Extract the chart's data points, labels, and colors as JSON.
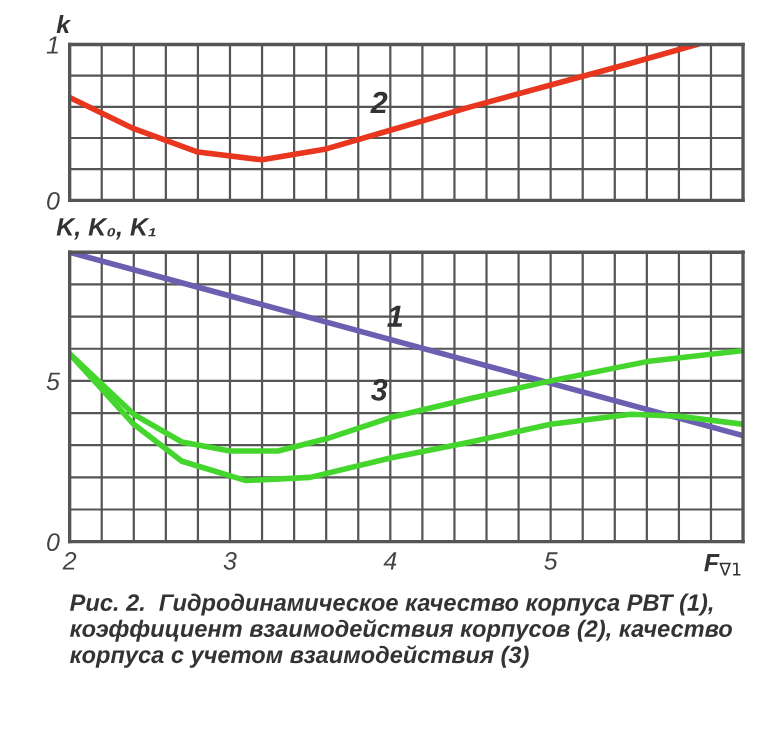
{
  "chart_data": [
    {
      "type": "line",
      "ylabel": "k",
      "tick_labels": "y",
      "grid": true,
      "xlim": [
        2,
        6.2
      ],
      "ylim": [
        0,
        1
      ],
      "xticks": [
        {
          "value": 2,
          "label": null
        },
        {
          "value": 2.2,
          "label": null
        },
        {
          "value": 2.4,
          "label": null
        },
        {
          "value": 2.6,
          "label": null
        },
        {
          "value": 2.8,
          "label": null
        },
        {
          "value": 3,
          "label": null
        },
        {
          "value": 3.2,
          "label": null
        },
        {
          "value": 3.4,
          "label": null
        },
        {
          "value": 3.6,
          "label": null
        },
        {
          "value": 3.8,
          "label": null
        },
        {
          "value": 4,
          "label": null
        },
        {
          "value": 4.2,
          "label": null
        },
        {
          "value": 4.4,
          "label": null
        },
        {
          "value": 4.6,
          "label": null
        },
        {
          "value": 4.8,
          "label": null
        },
        {
          "value": 5,
          "label": null
        },
        {
          "value": 5.2,
          "label": null
        },
        {
          "value": 5.4,
          "label": null
        },
        {
          "value": 5.6,
          "label": null
        },
        {
          "value": 5.8,
          "label": null
        },
        {
          "value": 6,
          "label": null
        }
      ],
      "yticks": [
        0,
        {
          "value": 0.2,
          "label": null
        },
        {
          "value": 0.4,
          "label": null
        },
        {
          "value": 0.6,
          "label": null
        },
        {
          "value": 0.8,
          "label": null
        },
        1
      ],
      "series": [
        {
          "name": "2",
          "color": "#e8361f",
          "x": [
            2.0,
            2.4,
            2.8,
            3.2,
            3.6,
            4.0,
            4.5,
            5.0,
            5.5,
            5.91
          ],
          "values": [
            0.66,
            0.46,
            0.31,
            0.26,
            0.33,
            0.45,
            0.6,
            0.74,
            0.88,
            1.0
          ]
        }
      ]
    },
    {
      "type": "line",
      "ylabel": "K, K₀, K₁",
      "xlabel": "F$_{∇1}$",
      "grid": true,
      "xlim": [
        2,
        6.2
      ],
      "ylim": [
        0,
        9
      ],
      "xticks": [
        2,
        {
          "value": 2.2,
          "label": null
        },
        {
          "value": 2.4,
          "label": null
        },
        {
          "value": 2.6,
          "label": null
        },
        {
          "value": 2.8,
          "label": null
        },
        3,
        {
          "value": 3.2,
          "label": null
        },
        {
          "value": 3.4,
          "label": null
        },
        {
          "value": 3.6,
          "label": null
        },
        {
          "value": 3.8,
          "label": null
        },
        4,
        {
          "value": 4.2,
          "label": null
        },
        {
          "value": 4.4,
          "label": null
        },
        {
          "value": 4.6,
          "label": null
        },
        {
          "value": 4.8,
          "label": null
        },
        5,
        {
          "value": 5.2,
          "label": null
        },
        {
          "value": 5.4,
          "label": null
        },
        {
          "value": 5.6,
          "label": null
        },
        {
          "value": 5.8,
          "label": null
        },
        {
          "value": 6,
          "label": null
        }
      ],
      "yticks": [
        0,
        {
          "value": 1,
          "label": null
        },
        {
          "value": 2,
          "label": null
        },
        {
          "value": 3,
          "label": null
        },
        {
          "value": 4,
          "label": null
        },
        5,
        {
          "value": 6,
          "label": null
        },
        {
          "value": 7,
          "label": null
        },
        {
          "value": 8,
          "label": null
        }
      ],
      "annotations": [
        "Рис. 2.  Гидродинамическое качество корпуса РВТ (1), коэффициент взаимодействия корпусов (2), качество корпуса с учетом взаимодействия (3)"
      ],
      "series": [
        {
          "name": "1",
          "color": "#6a5fb0",
          "x": [
            2.0,
            6.2
          ],
          "values": [
            9.0,
            3.3
          ]
        },
        {
          "name": "3",
          "color": "#44d62c",
          "x": [
            2.0,
            2.4,
            2.7,
            3.0,
            3.3,
            3.6,
            4.0,
            4.5,
            5.0,
            5.6,
            6.2
          ],
          "values": [
            5.84,
            3.96,
            3.1,
            2.82,
            2.82,
            3.2,
            3.86,
            4.45,
            5.0,
            5.6,
            5.94
          ]
        },
        {
          "color": "#44d62c",
          "x": [
            2.0,
            2.4,
            2.7,
            3.1,
            3.5,
            4.0,
            4.5,
            5.0,
            5.5,
            5.8,
            6.2
          ],
          "values": [
            5.84,
            3.65,
            2.5,
            1.9,
            2.0,
            2.6,
            3.1,
            3.65,
            3.96,
            3.9,
            3.65
          ]
        }
      ]
    }
  ]
}
